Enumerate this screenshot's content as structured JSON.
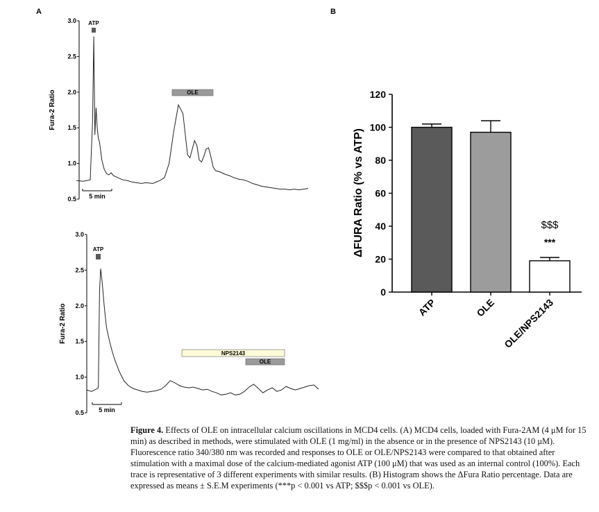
{
  "panel_labels": {
    "a": "A",
    "b": "B"
  },
  "chart_data": [
    {
      "type": "line",
      "panel": "A (top)",
      "ylabel": "Fura-2 Ratio",
      "yticks": [
        "3.0",
        "2.5",
        "2.0",
        "1.5",
        "1.0",
        "0.5"
      ],
      "ylim": [
        0.5,
        3.0
      ],
      "scale_bar_label": "5 min",
      "annotations": [
        {
          "label": "ATP",
          "kind": "marker",
          "color": "#5a5a5a"
        },
        {
          "label": "OLE",
          "kind": "bar",
          "color": "#9a9a9a"
        }
      ],
      "series": [
        {
          "x": [
            0,
            3,
            6,
            7,
            7.5,
            8,
            8.5,
            9,
            9.5,
            10,
            11,
            12,
            13,
            14,
            15,
            16,
            18,
            20,
            22,
            24,
            26,
            28,
            30,
            33,
            36,
            38,
            40,
            42,
            44,
            46,
            47,
            48,
            49,
            50,
            51,
            52,
            53,
            54,
            55,
            56,
            57,
            58,
            59,
            60,
            62,
            64,
            66,
            68,
            70,
            72,
            74,
            76,
            78,
            80,
            82,
            84,
            86,
            88,
            90,
            92,
            94,
            96,
            98,
            100
          ],
          "values": [
            0.76,
            0.75,
            0.77,
            1.6,
            2.78,
            1.4,
            1.78,
            1.5,
            1.35,
            1.3,
            1.05,
            0.92,
            0.86,
            0.84,
            0.87,
            0.83,
            0.8,
            0.77,
            0.76,
            0.74,
            0.73,
            0.72,
            0.73,
            0.72,
            0.76,
            0.8,
            1.0,
            1.45,
            1.82,
            1.7,
            1.4,
            1.12,
            1.08,
            1.2,
            1.32,
            1.25,
            1.05,
            1.02,
            1.1,
            1.2,
            1.22,
            1.1,
            0.95,
            0.9,
            0.88,
            0.85,
            0.83,
            0.8,
            0.78,
            0.77,
            0.75,
            0.72,
            0.7,
            0.68,
            0.67,
            0.66,
            0.65,
            0.64,
            0.64,
            0.63,
            0.64,
            0.63,
            0.64,
            0.65
          ]
        }
      ]
    },
    {
      "type": "line",
      "panel": "A (bottom)",
      "ylabel": "Fura-2 Ratio",
      "yticks": [
        "3.0",
        "2.5",
        "2.0",
        "1.5",
        "1.0",
        "0.5"
      ],
      "ylim": [
        0.5,
        3.0
      ],
      "scale_bar_label": "5 min",
      "annotations": [
        {
          "label": "ATP",
          "kind": "marker",
          "color": "#5a5a5a"
        },
        {
          "label": "NPS2143",
          "kind": "bar",
          "color": "#fdfbd8"
        },
        {
          "label": "OLE",
          "kind": "bar",
          "color": "#9a9a9a"
        }
      ],
      "series": [
        {
          "x": [
            0,
            2,
            4,
            5,
            5.5,
            6,
            6.5,
            7,
            7.5,
            8,
            8.5,
            9,
            10,
            11,
            12,
            14,
            16,
            18,
            20,
            22,
            24,
            26,
            28,
            30,
            32,
            34,
            36,
            38,
            40,
            42,
            44,
            46,
            48,
            50,
            52,
            54,
            56,
            58,
            60,
            62,
            64,
            66,
            68,
            70,
            72,
            74,
            76,
            78,
            80,
            82,
            84,
            86,
            88,
            90,
            92,
            94,
            96,
            98,
            100
          ],
          "values": [
            0.82,
            0.8,
            0.83,
            0.85,
            2.2,
            2.52,
            2.38,
            2.2,
            2.0,
            1.85,
            1.7,
            1.62,
            1.48,
            1.36,
            1.25,
            1.08,
            0.95,
            0.88,
            0.84,
            0.82,
            0.8,
            0.79,
            0.8,
            0.81,
            0.83,
            0.88,
            0.95,
            0.92,
            0.88,
            0.86,
            0.85,
            0.86,
            0.84,
            0.82,
            0.83,
            0.8,
            0.78,
            0.75,
            0.76,
            0.78,
            0.75,
            0.76,
            0.8,
            0.86,
            0.9,
            0.84,
            0.78,
            0.82,
            0.85,
            0.8,
            0.82,
            0.87,
            0.84,
            0.82,
            0.84,
            0.86,
            0.88,
            0.89,
            0.83
          ]
        }
      ]
    },
    {
      "type": "bar",
      "panel": "B",
      "ylabel": "ΔFURA Ratio (% vs ATP)",
      "categories": [
        "ATP",
        "OLE",
        "OLE/NPS2143"
      ],
      "values": [
        100,
        97,
        19
      ],
      "errors": [
        2,
        7,
        2
      ],
      "colors": [
        "#5a5a5a",
        "#9c9c9c",
        "#ffffff"
      ],
      "yticks": [
        "0",
        "20",
        "40",
        "60",
        "80",
        "100",
        "120"
      ],
      "ylim": [
        0,
        120
      ],
      "significance": {
        "dollar": "$$$",
        "stars": "***"
      }
    }
  ],
  "caption": {
    "label": "Figure 4.",
    "text": "Effects of OLE on intracellular calcium oscillations in MCD4 cells. (A) MCD4 cells, loaded with Fura-2AM (4 μM for 15 min) as described in methods, were stimulated with OLE (1 mg/ml) in the absence or in the presence of NPS2143 (10 μM). Fluorescence ratio 340/380 nm was recorded and responses to OLE or OLE/NPS2143 were compared to that obtained after stimulation with a maximal dose of the calcium-mediated agonist ATP (100 μM) that was used as an internal control (100%). Each trace is representative of 3 different experiments with similar results. (B) Histogram shows the ΔFura Ratio percentage. Data are expressed as means ± S.E.M experiments (***p < 0.001 vs ATP; $$$p < 0.001 vs OLE)."
  }
}
